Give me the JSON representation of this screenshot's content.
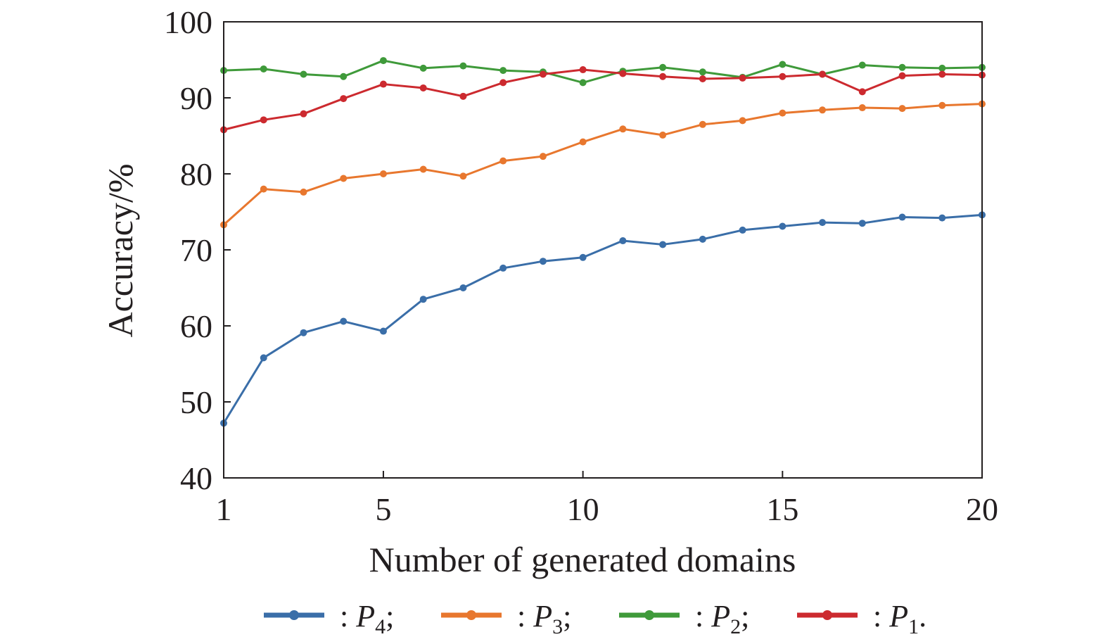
{
  "chart_data": {
    "type": "line",
    "xlabel": "Number of generated domains",
    "ylabel": "Accuracy/%",
    "xlim": [
      1,
      20
    ],
    "ylim": [
      40,
      100
    ],
    "xticks": [
      "1",
      "5",
      "10",
      "15",
      "20"
    ],
    "yticks": [
      "40",
      "50",
      "60",
      "70",
      "80",
      "90",
      "100"
    ],
    "grid": false,
    "legend_position": "bottom",
    "x": [
      1,
      2,
      3,
      4,
      5,
      6,
      7,
      8,
      9,
      10,
      11,
      12,
      13,
      14,
      15,
      16,
      17,
      18,
      19,
      20
    ],
    "series": [
      {
        "legend_prefix": ": ",
        "name": "P",
        "subscript": "4",
        "legend_suffix": ";",
        "color": "#3a6ea8",
        "values": [
          47.2,
          55.8,
          59.1,
          60.6,
          59.3,
          63.5,
          65.0,
          67.6,
          68.5,
          69.0,
          71.2,
          70.7,
          71.4,
          72.6,
          73.1,
          73.6,
          73.5,
          74.3,
          74.2,
          74.6
        ]
      },
      {
        "legend_prefix": ": ",
        "name": "P",
        "subscript": "3",
        "legend_suffix": ";",
        "color": "#e8772e",
        "values": [
          73.3,
          78.0,
          77.6,
          79.4,
          80.0,
          80.6,
          79.7,
          81.7,
          82.3,
          84.2,
          85.9,
          85.1,
          86.5,
          87.0,
          88.0,
          88.4,
          88.7,
          88.6,
          89.0,
          89.2
        ]
      },
      {
        "legend_prefix": ": ",
        "name": "P",
        "subscript": "2",
        "legend_suffix": ";",
        "color": "#3f9a3a",
        "values": [
          93.6,
          93.8,
          93.1,
          92.8,
          94.9,
          93.9,
          94.2,
          93.6,
          93.4,
          92.0,
          93.5,
          94.0,
          93.4,
          92.7,
          94.4,
          93.1,
          94.3,
          94.0,
          93.9,
          94.0
        ]
      },
      {
        "legend_prefix": ": ",
        "name": "P",
        "subscript": "1",
        "legend_suffix": ".",
        "color": "#cc2a2f",
        "values": [
          85.8,
          87.1,
          87.9,
          89.9,
          91.8,
          91.3,
          90.2,
          92.0,
          93.1,
          93.7,
          93.2,
          92.8,
          92.5,
          92.6,
          92.8,
          93.1,
          90.8,
          92.9,
          93.1,
          93.0
        ]
      }
    ]
  }
}
